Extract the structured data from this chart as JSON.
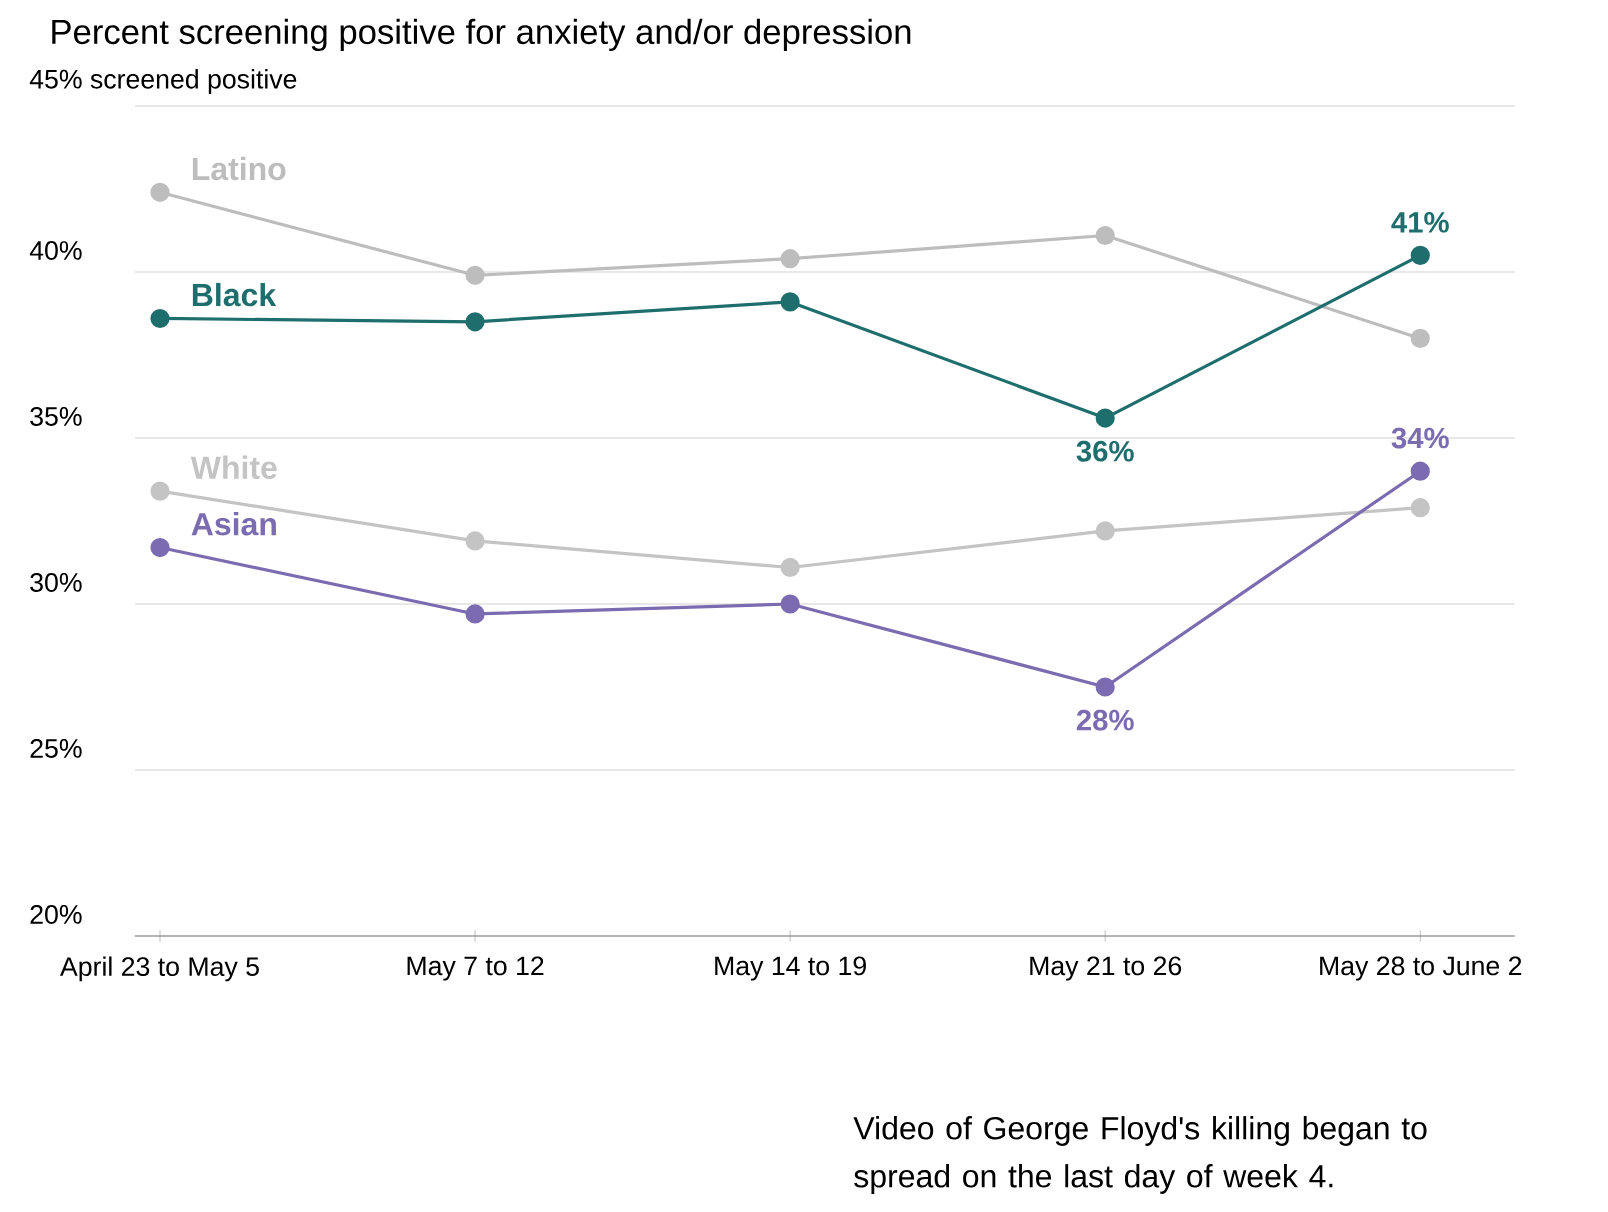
{
  "chart_data": {
    "type": "line",
    "title": "Percent screening positive for anxiety and/or depression",
    "categories": [
      "April 23 to May 5",
      "May 7 to 12",
      "May 14 to 19",
      "May 21 to 26",
      "May 28 to June 2"
    ],
    "series": [
      {
        "name": "Latino",
        "color": "#bdbdbd",
        "values": [
          42.4,
          39.9,
          40.4,
          41.1,
          38.0
        ]
      },
      {
        "name": "Black",
        "color": "#1f6e6e",
        "values": [
          38.6,
          38.5,
          39.1,
          35.6,
          40.5
        ],
        "value_labels": [
          null,
          null,
          null,
          "36%",
          "41%"
        ]
      },
      {
        "name": "White",
        "color": "#c4c4c4",
        "values": [
          33.4,
          31.9,
          31.1,
          32.2,
          32.9
        ]
      },
      {
        "name": "Asian",
        "color": "#7b6bb0",
        "values": [
          31.7,
          29.7,
          30.0,
          27.5,
          34.0
        ],
        "value_labels": [
          null,
          null,
          null,
          "28%",
          "34%"
        ]
      }
    ],
    "ylim": [
      20,
      45
    ],
    "yticks": [
      {
        "value": 20,
        "label": "20%"
      },
      {
        "value": 25,
        "label": "25%"
      },
      {
        "value": 30,
        "label": "30%"
      },
      {
        "value": 35,
        "label": "35%"
      },
      {
        "value": 40,
        "label": "40%"
      },
      {
        "value": 45,
        "label": "45% screened positive"
      }
    ],
    "grid": "y",
    "legend": false,
    "marker": "circle",
    "line_style": "solid",
    "annotations": [
      "Video of George Floyd's killing began to spread on the last day of week 4."
    ]
  }
}
